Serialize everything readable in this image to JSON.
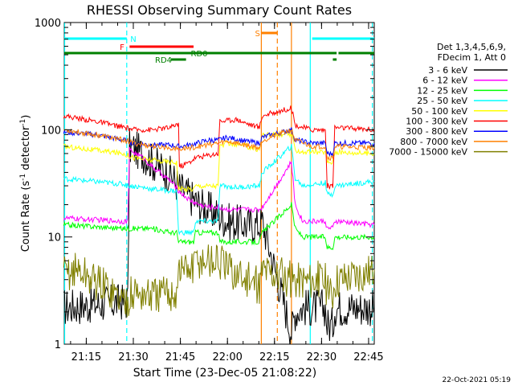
{
  "chart_data": {
    "type": "line",
    "title": "RHESSI Observing Summary Count Rates",
    "xlabel": "Start Time (23-Dec-05 21:08:22)",
    "ylabel_main": "Count Rate (s",
    "ylabel_sup1": "-1",
    "ylabel_mid": " detector",
    "ylabel_sup2": "-1",
    "ylabel_end": ")",
    "footer": "22-Oct-2021 05:19",
    "x_range_min": [
      21.133,
      22.78
    ],
    "x_ticks": [
      {
        "t": 21.25,
        "label": "21:15"
      },
      {
        "t": 21.5,
        "label": "21:30"
      },
      {
        "t": 21.75,
        "label": "21:45"
      },
      {
        "t": 22.0,
        "label": "22:00"
      },
      {
        "t": 22.25,
        "label": "22:15"
      },
      {
        "t": 22.5,
        "label": "22:30"
      },
      {
        "t": 22.75,
        "label": "22:45"
      }
    ],
    "y_scale": "log",
    "ylim": [
      1,
      1000
    ],
    "y_ticks": [
      {
        "v": 1,
        "label": "1"
      },
      {
        "v": 10,
        "label": "10"
      },
      {
        "v": 100,
        "label": "100"
      },
      {
        "v": 1000,
        "label": "1000"
      }
    ],
    "legend_header": [
      "Det 1,3,4,5,6,9,",
      "FDecim 1, Att 0"
    ],
    "series": [
      {
        "name": "3 - 6 keV",
        "color": "#000000",
        "points": [
          [
            21.13,
            2.2
          ],
          [
            21.45,
            2.5
          ],
          [
            21.47,
            2.5
          ],
          [
            21.48,
            70
          ],
          [
            21.55,
            60
          ],
          [
            21.6,
            50
          ],
          [
            21.7,
            38
          ],
          [
            21.75,
            28
          ],
          [
            21.8,
            24
          ],
          [
            21.85,
            20
          ],
          [
            21.9,
            18
          ],
          [
            21.95,
            16
          ],
          [
            22.0,
            14
          ],
          [
            22.1,
            13
          ],
          [
            22.17,
            13
          ],
          [
            22.185,
            14
          ],
          [
            22.34,
            1.3
          ],
          [
            22.36,
            2
          ],
          [
            22.4,
            2.2
          ],
          [
            22.52,
            2.2
          ],
          [
            22.53,
            1.5
          ],
          [
            22.56,
            1.5
          ],
          [
            22.57,
            2.2
          ],
          [
            22.78,
            2.2
          ]
        ]
      },
      {
        "name": "6 - 12 keV",
        "color": "#ff00ff",
        "points": [
          [
            21.13,
            15
          ],
          [
            21.45,
            14
          ],
          [
            21.47,
            14
          ],
          [
            21.48,
            65
          ],
          [
            21.55,
            55
          ],
          [
            21.6,
            45
          ],
          [
            21.7,
            33
          ],
          [
            21.75,
            26
          ],
          [
            21.8,
            22
          ],
          [
            21.85,
            20
          ],
          [
            21.9,
            19
          ],
          [
            21.95,
            19
          ],
          [
            22.0,
            18
          ],
          [
            22.1,
            18
          ],
          [
            22.17,
            18
          ],
          [
            22.185,
            19
          ],
          [
            22.34,
            50
          ],
          [
            22.36,
            20
          ],
          [
            22.4,
            14
          ],
          [
            22.52,
            14
          ],
          [
            22.53,
            12
          ],
          [
            22.56,
            12
          ],
          [
            22.57,
            14
          ],
          [
            22.78,
            13
          ]
        ]
      },
      {
        "name": "12 - 25 keV",
        "color": "#00ff00",
        "points": [
          [
            21.13,
            13
          ],
          [
            21.45,
            12
          ],
          [
            21.53,
            12
          ],
          [
            21.6,
            12
          ],
          [
            21.7,
            11
          ],
          [
            21.73,
            11
          ],
          [
            21.74,
            9
          ],
          [
            21.82,
            9
          ],
          [
            21.83,
            11
          ],
          [
            21.95,
            11
          ],
          [
            21.96,
            9
          ],
          [
            22.17,
            9
          ],
          [
            22.185,
            11
          ],
          [
            22.34,
            20
          ],
          [
            22.36,
            12
          ],
          [
            22.4,
            10
          ],
          [
            22.52,
            10
          ],
          [
            22.53,
            8
          ],
          [
            22.56,
            8
          ],
          [
            22.57,
            10
          ],
          [
            22.78,
            10
          ]
        ]
      },
      {
        "name": "25 - 50 keV",
        "color": "#00ffff",
        "points": [
          [
            21.13,
            35
          ],
          [
            21.45,
            31
          ],
          [
            21.48,
            30
          ],
          [
            21.55,
            29
          ],
          [
            21.6,
            28
          ],
          [
            21.7,
            27
          ],
          [
            21.73,
            27
          ],
          [
            21.74,
            11
          ],
          [
            21.82,
            11
          ],
          [
            21.83,
            14
          ],
          [
            21.95,
            14
          ],
          [
            21.96,
            30
          ],
          [
            22.05,
            29
          ],
          [
            22.17,
            30
          ],
          [
            22.185,
            40
          ],
          [
            22.34,
            70
          ],
          [
            22.36,
            35
          ],
          [
            22.4,
            30
          ],
          [
            22.52,
            32
          ],
          [
            22.53,
            25
          ],
          [
            22.56,
            25
          ],
          [
            22.57,
            30
          ],
          [
            22.78,
            33
          ]
        ]
      },
      {
        "name": "50 - 100 keV",
        "color": "#ffff00",
        "points": [
          [
            21.13,
            70
          ],
          [
            21.45,
            60
          ],
          [
            21.5,
            55
          ],
          [
            21.6,
            52
          ],
          [
            21.7,
            50
          ],
          [
            21.73,
            50
          ],
          [
            21.74,
            28
          ],
          [
            21.82,
            28
          ],
          [
            21.83,
            30
          ],
          [
            21.95,
            30
          ],
          [
            21.96,
            70
          ],
          [
            22.0,
            75
          ],
          [
            22.1,
            70
          ],
          [
            22.17,
            65
          ],
          [
            22.185,
            90
          ],
          [
            22.34,
            90
          ],
          [
            22.36,
            65
          ],
          [
            22.4,
            62
          ],
          [
            22.52,
            62
          ],
          [
            22.53,
            50
          ],
          [
            22.56,
            50
          ],
          [
            22.57,
            62
          ],
          [
            22.78,
            60
          ]
        ]
      },
      {
        "name": "100 - 300 keV",
        "color": "#ff0000",
        "points": [
          [
            21.13,
            135
          ],
          [
            21.3,
            120
          ],
          [
            21.45,
            105
          ],
          [
            21.5,
            100
          ],
          [
            21.6,
            100
          ],
          [
            21.7,
            105
          ],
          [
            21.74,
            115
          ],
          [
            21.745,
            45
          ],
          [
            21.8,
            50
          ],
          [
            21.83,
            55
          ],
          [
            21.95,
            60
          ],
          [
            21.96,
            120
          ],
          [
            22.05,
            125
          ],
          [
            22.1,
            115
          ],
          [
            22.17,
            105
          ],
          [
            22.185,
            135
          ],
          [
            22.34,
            160
          ],
          [
            22.36,
            110
          ],
          [
            22.45,
            100
          ],
          [
            22.52,
            100
          ],
          [
            22.53,
            30
          ],
          [
            22.56,
            30
          ],
          [
            22.57,
            105
          ],
          [
            22.78,
            100
          ]
        ]
      },
      {
        "name": "300 - 800 keV",
        "color": "#0000ff",
        "points": [
          [
            21.13,
            95
          ],
          [
            21.3,
            90
          ],
          [
            21.45,
            80
          ],
          [
            21.5,
            75
          ],
          [
            21.6,
            72
          ],
          [
            21.7,
            72
          ],
          [
            21.74,
            70
          ],
          [
            21.75,
            70
          ],
          [
            21.8,
            72
          ],
          [
            21.9,
            80
          ],
          [
            21.95,
            80
          ],
          [
            22.0,
            85
          ],
          [
            22.1,
            78
          ],
          [
            22.17,
            75
          ],
          [
            22.185,
            85
          ],
          [
            22.34,
            100
          ],
          [
            22.36,
            80
          ],
          [
            22.45,
            75
          ],
          [
            22.52,
            75
          ],
          [
            22.53,
            60
          ],
          [
            22.56,
            60
          ],
          [
            22.57,
            75
          ],
          [
            22.78,
            75
          ]
        ]
      },
      {
        "name": "800 - 7000 keV",
        "color": "#ff8000",
        "points": [
          [
            21.13,
            100
          ],
          [
            21.3,
            90
          ],
          [
            21.45,
            80
          ],
          [
            21.5,
            75
          ],
          [
            21.6,
            70
          ],
          [
            21.7,
            68
          ],
          [
            21.74,
            66
          ],
          [
            21.75,
            66
          ],
          [
            21.85,
            70
          ],
          [
            21.95,
            75
          ],
          [
            22.0,
            78
          ],
          [
            22.1,
            72
          ],
          [
            22.17,
            68
          ],
          [
            22.185,
            80
          ],
          [
            22.34,
            100
          ],
          [
            22.36,
            80
          ],
          [
            22.45,
            70
          ],
          [
            22.52,
            70
          ],
          [
            22.53,
            55
          ],
          [
            22.56,
            55
          ],
          [
            22.57,
            70
          ],
          [
            22.78,
            68
          ]
        ]
      },
      {
        "name": "7000 - 15000 keV",
        "color": "#808000",
        "points": [
          [
            21.13,
            4.5
          ],
          [
            21.2,
            5
          ],
          [
            21.28,
            4
          ],
          [
            21.35,
            3.5
          ],
          [
            21.45,
            2.5
          ],
          [
            21.5,
            3
          ],
          [
            21.6,
            2.8
          ],
          [
            21.7,
            3
          ],
          [
            21.73,
            3
          ],
          [
            21.74,
            5
          ],
          [
            21.82,
            5
          ],
          [
            21.83,
            6
          ],
          [
            21.95,
            6
          ],
          [
            22.0,
            5
          ],
          [
            22.1,
            4
          ],
          [
            22.17,
            3.5
          ],
          [
            22.185,
            5
          ],
          [
            22.34,
            4
          ],
          [
            22.36,
            4
          ],
          [
            22.4,
            4
          ],
          [
            22.52,
            4
          ],
          [
            22.53,
            3
          ],
          [
            22.56,
            3
          ],
          [
            22.57,
            4
          ],
          [
            22.78,
            5
          ]
        ]
      }
    ],
    "vertical_lines": [
      {
        "t": 21.135,
        "color": "#00ffff",
        "style": "solid"
      },
      {
        "t": 21.465,
        "color": "#00ffff",
        "style": "dashed"
      },
      {
        "t": 22.18,
        "color": "#ff8000",
        "style": "solid"
      },
      {
        "t": 22.265,
        "color": "#ff8000",
        "style": "dashed"
      },
      {
        "t": 22.34,
        "color": "#ff8000",
        "style": "solid"
      },
      {
        "t": 22.44,
        "color": "#00ffff",
        "style": "solid"
      },
      {
        "t": 22.77,
        "color": "#00ffff",
        "style": "dashed"
      }
    ],
    "flag_bars": [
      {
        "label": "N",
        "color": "#00ffff",
        "level": 0,
        "segments": [
          [
            21.133,
            21.465
          ],
          [
            22.45,
            22.78
          ]
        ],
        "label_t": 21.5
      },
      {
        "label": "S",
        "color": "#ff8000",
        "level": 1,
        "segments": [
          [
            22.18,
            22.265
          ]
        ],
        "label_t": 22.16
      },
      {
        "label": "F",
        "color": "#ff0000",
        "level": 2,
        "segments": [
          [
            21.48,
            21.82
          ]
        ],
        "label_t": 21.44
      },
      {
        "label": "RD0",
        "color": "#008000",
        "level": 3,
        "segments": [
          [
            21.133,
            22.58
          ],
          [
            22.59,
            22.78
          ]
        ],
        "label_t": 21.85
      },
      {
        "label": "RD4",
        "color": "#008000",
        "level": 4,
        "segments": [
          [
            21.7,
            21.78
          ],
          [
            22.56,
            22.58
          ]
        ],
        "label_t": 21.66
      }
    ]
  }
}
